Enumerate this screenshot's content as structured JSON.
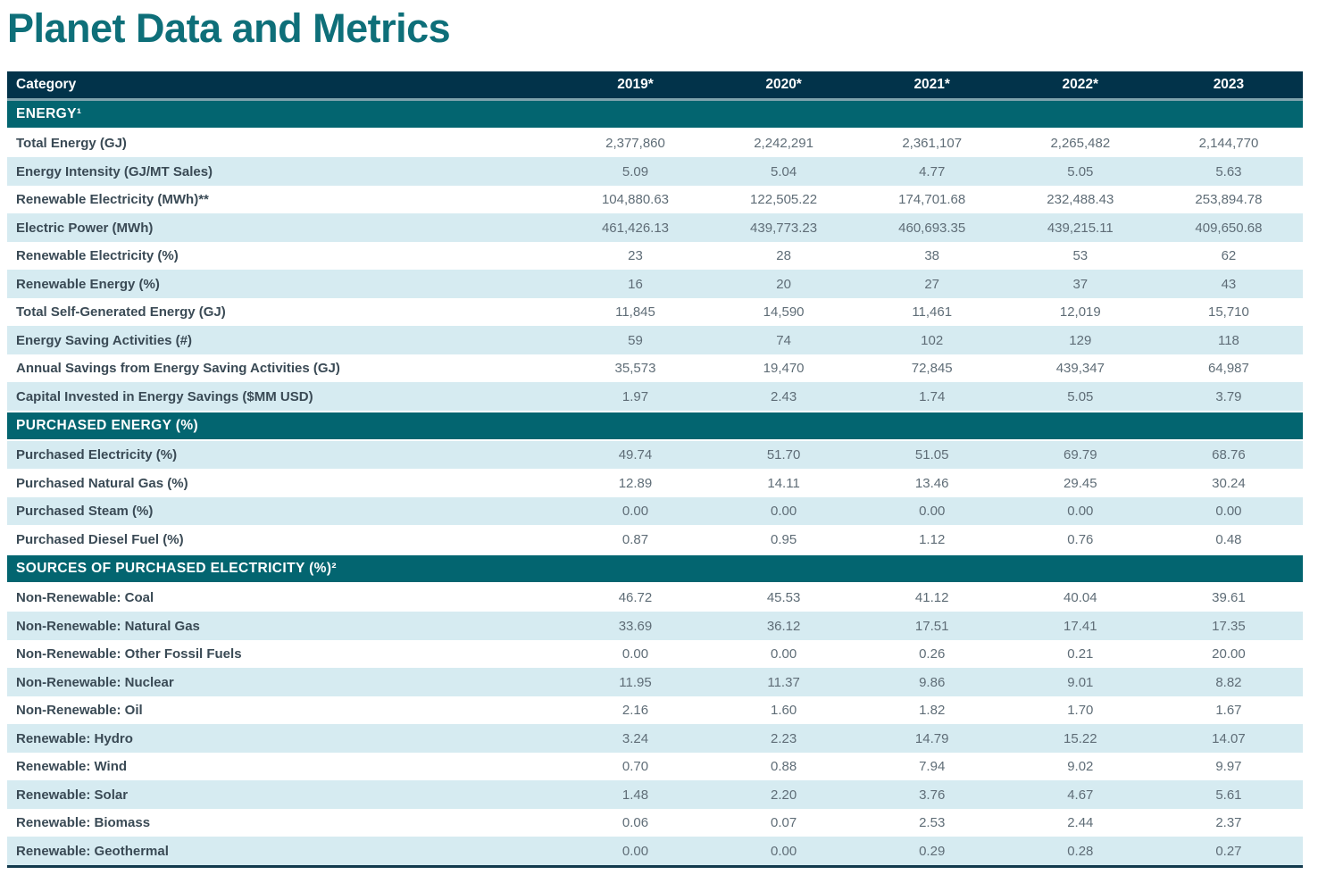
{
  "title": "Planet Data and Metrics",
  "colors": {
    "title_teal": "#0e6f79",
    "header_bg": "#02334a",
    "header_separator": "#7fa3ad",
    "section_bg": "#036570",
    "stripe_blue": "#d6ebf1",
    "bottom_border": "#123a4d",
    "label_text": "#3a4a55",
    "value_text": "#5f6d77"
  },
  "table": {
    "header": {
      "category_label": "Category",
      "year_columns": [
        "2019*",
        "2020*",
        "2021*",
        "2022*",
        "2023"
      ]
    },
    "sections": [
      {
        "label": "ENERGY¹",
        "rows": [
          {
            "category": "Total Energy (GJ)",
            "values": [
              "2,377,860",
              "2,242,291",
              "2,361,107",
              "2,265,482",
              "2,144,770"
            ]
          },
          {
            "category": "Energy Intensity (GJ/MT Sales)",
            "values": [
              "5.09",
              "5.04",
              "4.77",
              "5.05",
              "5.63"
            ]
          },
          {
            "category": "Renewable Electricity (MWh)**",
            "values": [
              "104,880.63",
              "122,505.22",
              "174,701.68",
              "232,488.43",
              "253,894.78"
            ]
          },
          {
            "category": "Electric Power (MWh)",
            "values": [
              "461,426.13",
              "439,773.23",
              "460,693.35",
              "439,215.11",
              "409,650.68"
            ]
          },
          {
            "category": "Renewable Electricity (%)",
            "values": [
              "23",
              "28",
              "38",
              "53",
              "62"
            ]
          },
          {
            "category": "Renewable Energy (%)",
            "values": [
              "16",
              "20",
              "27",
              "37",
              "43"
            ]
          },
          {
            "category": "Total Self-Generated Energy (GJ)",
            "values": [
              "11,845",
              "14,590",
              "11,461",
              "12,019",
              "15,710"
            ]
          },
          {
            "category": "Energy Saving Activities (#)",
            "values": [
              "59",
              "74",
              "102",
              "129",
              "118"
            ]
          },
          {
            "category": "Annual Savings from Energy Saving Activities (GJ)",
            "values": [
              "35,573",
              "19,470",
              "72,845",
              "439,347",
              "64,987"
            ]
          },
          {
            "category": "Capital Invested in Energy Savings ($MM USD)",
            "values": [
              "1.97",
              "2.43",
              "1.74",
              "5.05",
              "3.79"
            ]
          }
        ]
      },
      {
        "label": "PURCHASED ENERGY (%)",
        "rows": [
          {
            "category": "Purchased Electricity (%)",
            "values": [
              "49.74",
              "51.70",
              "51.05",
              "69.79",
              "68.76"
            ]
          },
          {
            "category": "Purchased Natural Gas (%)",
            "values": [
              "12.89",
              "14.11",
              "13.46",
              "29.45",
              "30.24"
            ]
          },
          {
            "category": "Purchased Steam (%)",
            "values": [
              "0.00",
              "0.00",
              "0.00",
              "0.00",
              "0.00"
            ]
          },
          {
            "category": "Purchased Diesel Fuel (%)",
            "values": [
              "0.87",
              "0.95",
              "1.12",
              "0.76",
              "0.48"
            ]
          }
        ]
      },
      {
        "label": "SOURCES OF PURCHASED ELECTRICITY (%)²",
        "rows": [
          {
            "category": "Non-Renewable: Coal",
            "values": [
              "46.72",
              "45.53",
              "41.12",
              "40.04",
              "39.61"
            ]
          },
          {
            "category": "Non-Renewable: Natural Gas",
            "values": [
              "33.69",
              "36.12",
              "17.51",
              "17.41",
              "17.35"
            ]
          },
          {
            "category": "Non-Renewable: Other Fossil Fuels",
            "values": [
              "0.00",
              "0.00",
              "0.26",
              "0.21",
              "20.00"
            ]
          },
          {
            "category": "Non-Renewable: Nuclear",
            "values": [
              "11.95",
              "11.37",
              "9.86",
              "9.01",
              "8.82"
            ]
          },
          {
            "category": "Non-Renewable: Oil",
            "values": [
              "2.16",
              "1.60",
              "1.82",
              "1.70",
              "1.67"
            ]
          },
          {
            "category": "Renewable: Hydro",
            "values": [
              "3.24",
              "2.23",
              "14.79",
              "15.22",
              "14.07"
            ]
          },
          {
            "category": "Renewable: Wind",
            "values": [
              "0.70",
              "0.88",
              "7.94",
              "9.02",
              "9.97"
            ]
          },
          {
            "category": "Renewable: Solar",
            "values": [
              "1.48",
              "2.20",
              "3.76",
              "4.67",
              "5.61"
            ]
          },
          {
            "category": "Renewable: Biomass",
            "values": [
              "0.06",
              "0.07",
              "2.53",
              "2.44",
              "2.37"
            ]
          },
          {
            "category": "Renewable: Geothermal",
            "values": [
              "0.00",
              "0.00",
              "0.29",
              "0.28",
              "0.27"
            ]
          }
        ]
      }
    ]
  }
}
